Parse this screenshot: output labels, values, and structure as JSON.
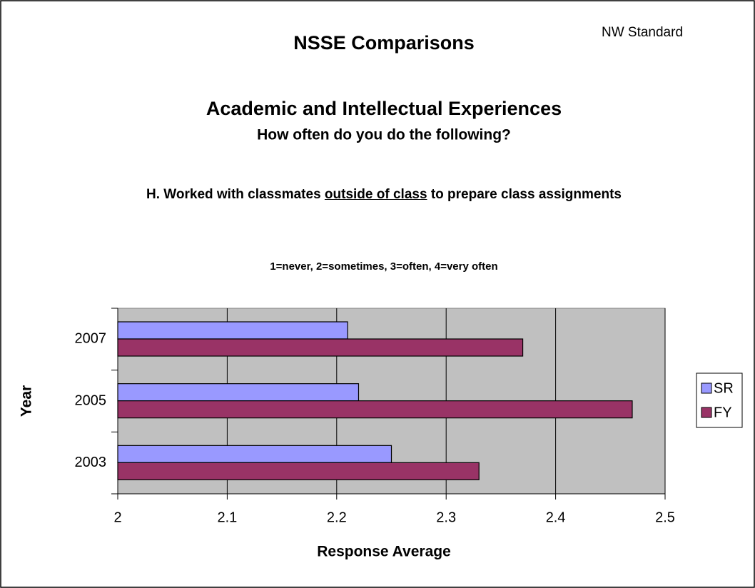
{
  "chart_data": {
    "type": "hbar",
    "title": "NSSE Comparisons",
    "corner_note": "NW Standard",
    "subtitle": "Academic and Intellectual Experiences",
    "subtitle2": "How often do you do the following?",
    "question_before": "H. Worked with classmates",
    "question_underlined": "outside of class",
    "question_after": "to prepare class assignments",
    "scale_note": "1=never, 2=sometimes, 3=often, 4=very often",
    "x_label": "Response Average",
    "y_label": "Year",
    "categories": [
      "2007",
      "2005",
      "2003"
    ],
    "series": [
      {
        "name": "SR",
        "color": "#9999ff",
        "values": [
          2.21,
          2.22,
          2.25
        ]
      },
      {
        "name": "FY",
        "color": "#993366",
        "values": [
          2.37,
          2.47,
          2.33
        ]
      }
    ],
    "xlim": [
      2,
      2.5
    ],
    "xticks": [
      2,
      2.1,
      2.2,
      2.3,
      2.4,
      2.5
    ],
    "grid": true,
    "plot_background": "#c0c0c0",
    "legend": "right"
  }
}
